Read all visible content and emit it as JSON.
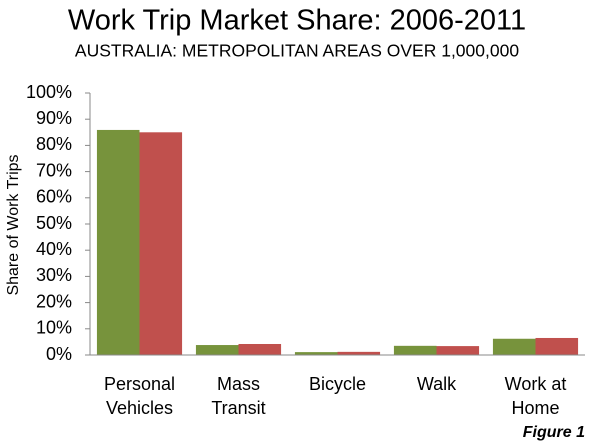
{
  "chart_data": {
    "type": "bar",
    "title": "Work Trip Market Share: 2006-2011",
    "subtitle": "AUSTRALIA: METROPOLITAN AREAS OVER 1,000,000",
    "y_label": "Share of Work Trips",
    "annotation": "Figure 1",
    "categories": [
      "Personal Vehicles",
      "Mass Transit",
      "Bicycle",
      "Walk",
      "Work at Home"
    ],
    "series": [
      {
        "color": "#77933c",
        "values": [
          85.9,
          3.8,
          1.1,
          3.5,
          6.2
        ]
      },
      {
        "color": "#c0504d",
        "values": [
          85.0,
          4.2,
          1.2,
          3.4,
          6.5
        ]
      }
    ],
    "ylim": [
      0,
      100
    ],
    "yticks": [
      {
        "value": 0,
        "label": "0%"
      },
      {
        "value": 10,
        "label": "10%"
      },
      {
        "value": 20,
        "label": "20%"
      },
      {
        "value": 30,
        "label": "30%"
      },
      {
        "value": 40,
        "label": "40%"
      },
      {
        "value": 50,
        "label": "50%"
      },
      {
        "value": 60,
        "label": "60%"
      },
      {
        "value": 70,
        "label": "70%"
      },
      {
        "value": 80,
        "label": "80%"
      },
      {
        "value": 90,
        "label": "90%"
      },
      {
        "value": 100,
        "label": "100%"
      }
    ],
    "grid": false
  }
}
